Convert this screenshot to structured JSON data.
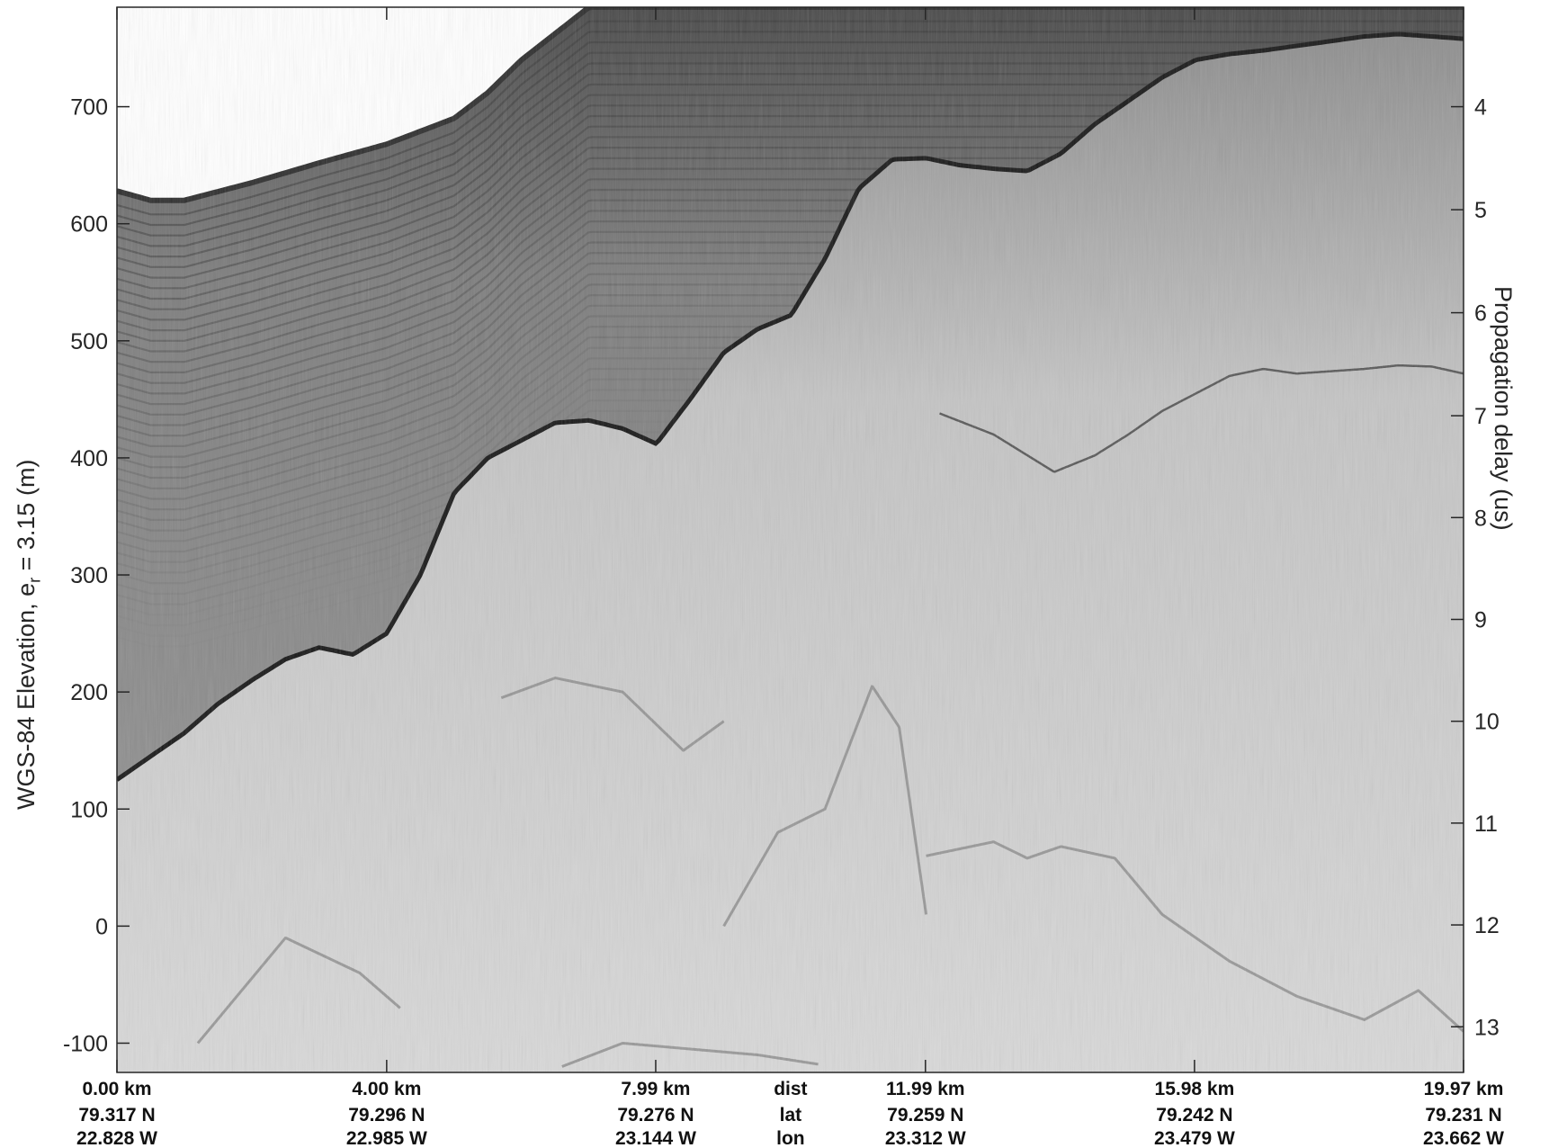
{
  "chart_data": {
    "type": "heatmap",
    "description_kind": "radar echogram (grayscale)",
    "colormap": "gray (dark = strong return)",
    "ylabel_left": {
      "prefix": "WGS-84 Elevation, e",
      "sub": "r",
      "suffix": " = 3.15 (m)"
    },
    "ylabel_right": "Propagation delay (us)",
    "ylim": [
      -125,
      785
    ],
    "yticks_left": [
      -100,
      0,
      100,
      200,
      300,
      400,
      500,
      600,
      700
    ],
    "yticks_right": [
      {
        "label": "4",
        "elev": 700
      },
      {
        "label": "5",
        "elev": 612
      },
      {
        "label": "6",
        "elev": 524
      },
      {
        "label": "7",
        "elev": 436
      },
      {
        "label": "8",
        "elev": 349
      },
      {
        "label": "9",
        "elev": 262
      },
      {
        "label": "10",
        "elev": 175
      },
      {
        "label": "11",
        "elev": 88
      },
      {
        "label": "12",
        "elev": 1
      },
      {
        "label": "13",
        "elev": -86
      }
    ],
    "xlim_km": [
      0,
      19.97
    ],
    "x_ticks": [
      {
        "dist": "0.00 km",
        "lat": "79.317 N",
        "lon": "22.828 W",
        "km": 0.0
      },
      {
        "dist": "4.00 km",
        "lat": "79.296 N",
        "lon": "22.985 W",
        "km": 4.0
      },
      {
        "dist": "7.99 km",
        "lat": "79.276 N",
        "lon": "23.144 W",
        "km": 7.99
      },
      {
        "dist": "11.99 km",
        "lat": "79.259 N",
        "lon": "23.312 W",
        "km": 11.99
      },
      {
        "dist": "15.98 km",
        "lat": "79.242 N",
        "lon": "23.479 W",
        "km": 15.98
      },
      {
        "dist": "19.97 km",
        "lat": "79.231 N",
        "lon": "23.662 W",
        "km": 19.97
      }
    ],
    "x_row_labels": {
      "dist": "dist",
      "lat": "lat",
      "lon": "lon"
    },
    "surface_elevation": {
      "km": [
        0.0,
        0.5,
        1.0,
        2.0,
        3.0,
        4.0,
        5.0,
        5.5,
        6.0,
        7.0,
        8.0,
        9.0,
        10.0,
        11.0,
        12.0,
        12.5,
        13.0,
        14.0,
        15.0,
        16.0,
        17.0,
        18.0,
        19.0,
        19.97
      ],
      "elev": [
        628,
        620,
        620,
        635,
        652,
        668,
        690,
        712,
        740,
        785,
        785,
        785,
        785,
        785,
        785,
        785,
        785,
        785,
        785,
        785,
        785,
        785,
        785,
        785
      ]
    },
    "bed_elevation": {
      "km": [
        0.0,
        0.5,
        1.0,
        1.5,
        2.0,
        2.5,
        3.0,
        3.5,
        4.0,
        4.5,
        5.0,
        5.5,
        6.0,
        6.5,
        7.0,
        7.5,
        8.0,
        8.5,
        9.0,
        9.5,
        10.0,
        10.5,
        11.0,
        11.5,
        12.0,
        12.5,
        13.0,
        13.5,
        14.0,
        14.5,
        15.0,
        15.5,
        16.0,
        16.5,
        17.0,
        17.5,
        18.0,
        18.5,
        19.0,
        19.5,
        19.97
      ],
      "elev": [
        125,
        145,
        165,
        190,
        210,
        228,
        238,
        232,
        250,
        300,
        370,
        400,
        415,
        430,
        432,
        425,
        412,
        450,
        490,
        510,
        522,
        570,
        630,
        655,
        656,
        650,
        647,
        645,
        660,
        685,
        705,
        725,
        740,
        745,
        748,
        752,
        756,
        760,
        762,
        760,
        758
      ]
    },
    "internal_horizon": {
      "km": [
        12.2,
        13.0,
        13.9,
        14.5,
        15.0,
        15.5,
        16.0,
        16.5,
        17.0,
        17.5,
        18.0,
        18.5,
        19.0,
        19.5,
        19.97
      ],
      "elev": [
        438,
        420,
        388,
        402,
        420,
        440,
        455,
        470,
        476,
        472,
        474,
        476,
        479,
        478,
        472
      ]
    },
    "deep_echoes": [
      {
        "km": [
          5.7,
          6.5,
          7.5,
          8.4,
          9.0
        ],
        "elev": [
          195,
          212,
          200,
          150,
          175
        ]
      },
      {
        "km": [
          1.2,
          2.5,
          3.6,
          4.2
        ],
        "elev": [
          -100,
          -10,
          -40,
          -70
        ]
      },
      {
        "km": [
          9.0,
          9.8,
          10.5,
          11.2,
          11.6,
          12.0
        ],
        "elev": [
          0,
          80,
          100,
          205,
          170,
          10
        ]
      },
      {
        "km": [
          12.0,
          13.0,
          13.5,
          14.0,
          14.8,
          15.5,
          16.5,
          17.5
        ],
        "elev": [
          60,
          72,
          58,
          68,
          58,
          10,
          -30,
          -60
        ]
      },
      {
        "km": [
          6.6,
          7.5,
          8.5,
          9.5,
          10.4
        ],
        "elev": [
          -120,
          -100,
          -105,
          -110,
          -118
        ]
      },
      {
        "km": [
          17.5,
          18.5,
          19.3,
          19.97
        ],
        "elev": [
          -60,
          -80,
          -55,
          -90
        ]
      }
    ]
  }
}
